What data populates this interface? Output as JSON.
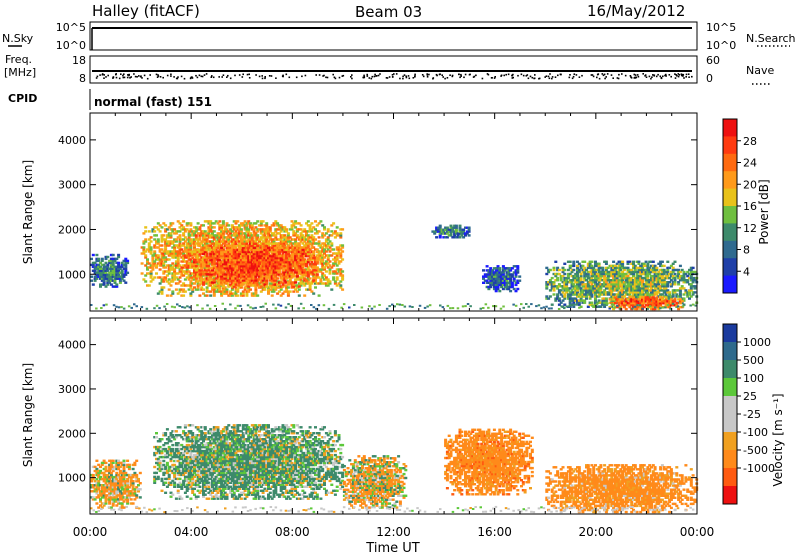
{
  "header": {
    "station": "Halley (fitACF)",
    "beam": "Beam 03",
    "date": "16/May/2012"
  },
  "summary_panels": {
    "nsky": {
      "left_label": "N.Sky",
      "left_ticks": [
        "10^5",
        "10^0"
      ],
      "right_label": "N.Search",
      "right_ticks": [
        "10^5",
        "10^0"
      ]
    },
    "freq": {
      "left_label_1": "Freq.",
      "left_label_2": "[MHz]",
      "left_ticks": [
        "18",
        "8"
      ],
      "right_label": "Nave",
      "right_ticks": [
        "60",
        "0"
      ]
    },
    "cpid": {
      "label": "CPID",
      "value": "normal (fast) 151"
    }
  },
  "colors": {
    "power": [
      "#1a1aff",
      "#1f3fa8",
      "#2f6a8f",
      "#3d8a6b",
      "#6fbf3f",
      "#e8c21a",
      "#ff9a1a",
      "#ff6a10",
      "#ff3a10",
      "#ee1010"
    ],
    "velocity": [
      "#1a3a9e",
      "#2e6a8c",
      "#3d8a6b",
      "#5cc83a",
      "#c8c8c8",
      "#c8c8c8",
      "#f0a020",
      "#ff8a1a",
      "#ff5a10",
      "#ee1010"
    ]
  },
  "chart_data": [
    {
      "type": "heatmap",
      "name": "power",
      "xlabel": "",
      "ylabel": "Slant Range [km]",
      "xlim": [
        "00:00",
        "24:00"
      ],
      "ylim": [
        180,
        4600
      ],
      "y_ticks": [
        1000,
        2000,
        3000,
        4000
      ],
      "colorbar": {
        "label": "Power [dB]",
        "range": [
          0,
          32
        ],
        "ticks": [
          "4",
          "8",
          "12",
          "16",
          "20",
          "24",
          "28"
        ]
      },
      "echo_regions": [
        {
          "t_start": "00:00",
          "t_end": "01:30",
          "range_km": [
            700,
            1450
          ],
          "mean_power_db": 10
        },
        {
          "t_start": "02:00",
          "t_end": "10:00",
          "range_km": [
            500,
            2200
          ],
          "mean_power_db": 22
        },
        {
          "t_start": "04:00",
          "t_end": "09:00",
          "range_km": [
            700,
            1700
          ],
          "mean_power_db": 27
        },
        {
          "t_start": "13:30",
          "t_end": "15:00",
          "range_km": [
            1800,
            2100
          ],
          "mean_power_db": 10
        },
        {
          "t_start": "15:30",
          "t_end": "17:00",
          "range_km": [
            600,
            1200
          ],
          "mean_power_db": 8
        },
        {
          "t_start": "18:00",
          "t_end": "24:00",
          "range_km": [
            250,
            1300
          ],
          "mean_power_db": 15
        },
        {
          "t_start": "20:30",
          "t_end": "23:30",
          "range_km": [
            200,
            500
          ],
          "mean_power_db": 26
        }
      ]
    },
    {
      "type": "heatmap",
      "name": "velocity",
      "xlabel": "Time UT",
      "ylabel": "Slant Range [km]",
      "x_ticks": [
        "00:00",
        "04:00",
        "08:00",
        "12:00",
        "16:00",
        "20:00",
        "00:00"
      ],
      "ylim": [
        180,
        4600
      ],
      "y_ticks": [
        1000,
        2000,
        3000,
        4000
      ],
      "colorbar": {
        "label": "Velocity [m s⁻¹]",
        "ticks": [
          "1000",
          "500",
          "100",
          "25",
          "-25",
          "-100",
          "-500",
          "-1000"
        ]
      },
      "echo_regions": [
        {
          "t_start": "00:00",
          "t_end": "02:00",
          "range_km": [
            300,
            1400
          ],
          "mean_velocity_ms": -100
        },
        {
          "t_start": "02:30",
          "t_end": "10:00",
          "range_km": [
            500,
            2200
          ],
          "mean_velocity_ms": 150
        },
        {
          "t_start": "10:00",
          "t_end": "12:30",
          "range_km": [
            300,
            1500
          ],
          "mean_velocity_ms": -60
        },
        {
          "t_start": "14:00",
          "t_end": "17:30",
          "range_km": [
            600,
            2100
          ],
          "mean_velocity_ms": -300
        },
        {
          "t_start": "18:00",
          "t_end": "24:00",
          "range_km": [
            200,
            1300
          ],
          "mean_velocity_ms": -250
        }
      ]
    }
  ]
}
